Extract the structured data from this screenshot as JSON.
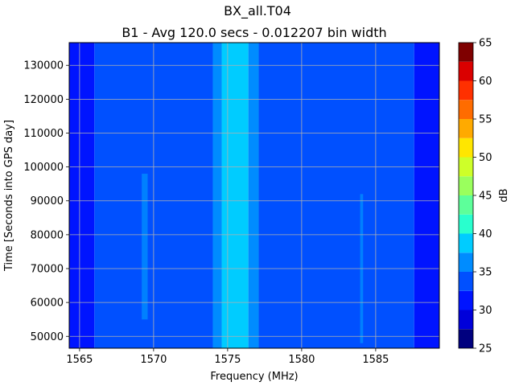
{
  "chart_data": {
    "type": "heatmap",
    "title": "BX_all.T04",
    "subtitle": "B1 - Avg 120.0 secs - 0.012207 bin width",
    "xlabel": "Frequency (MHz)",
    "ylabel": "Time [Seconds into GPS day]",
    "colorbar_label": "dB",
    "xlim": [
      1564.3,
      1589.3
    ],
    "ylim": [
      46500,
      136700
    ],
    "xticks": [
      1565,
      1570,
      1575,
      1580,
      1585
    ],
    "yticks": [
      50000,
      60000,
      70000,
      80000,
      90000,
      100000,
      110000,
      120000,
      130000
    ],
    "colorbar_ticks": [
      25,
      30,
      35,
      40,
      45,
      50,
      55,
      60,
      65
    ],
    "colorbar_levels": [
      25,
      27.5,
      30,
      32.5,
      35,
      37.5,
      40,
      42.5,
      45,
      47.5,
      50,
      52.5,
      55,
      57.5,
      60,
      62.5,
      65
    ],
    "grid": true,
    "colors": {
      "levels": [
        "#00007f",
        "#0000da",
        "#0014ff",
        "#0050ff",
        "#008cff",
        "#00ccff",
        "#29ffce",
        "#5dff9a",
        "#9aff5d",
        "#ceff29",
        "#ffe600",
        "#ffaa00",
        "#ff6c00",
        "#ff3000",
        "#da0000",
        "#7f0000"
      ]
    },
    "bands": [
      {
        "x": [
          1564.3,
          1566.0
        ],
        "level_db": 30.0
      },
      {
        "x": [
          1566.0,
          1574.0
        ],
        "level_db": 32.5
      },
      {
        "x": [
          1574.0,
          1574.6
        ],
        "level_db": 35.0
      },
      {
        "x": [
          1574.6,
          1576.4
        ],
        "level_db": 37.5
      },
      {
        "x": [
          1576.4,
          1577.1
        ],
        "level_db": 35.0
      },
      {
        "x": [
          1577.1,
          1587.6
        ],
        "level_db": 32.5
      },
      {
        "x": [
          1587.6,
          1589.3
        ],
        "level_db": 30.0
      }
    ],
    "features": [
      {
        "x": [
          1583.95,
          1584.15
        ],
        "y": [
          48000,
          92000
        ],
        "level_db": 35.0
      },
      {
        "x": [
          1569.2,
          1569.6
        ],
        "y": [
          55000,
          98000
        ],
        "level_db": 35.0
      }
    ]
  }
}
